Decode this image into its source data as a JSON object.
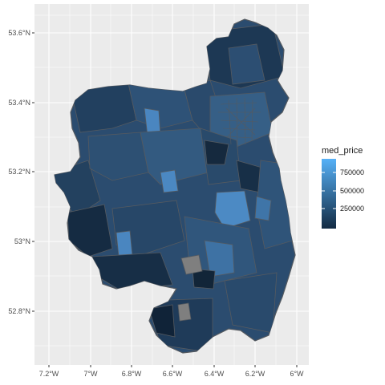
{
  "map": {
    "x_ticks": [
      "7.2°W",
      "7°W",
      "6.8°W",
      "6.6°W",
      "6.4°W",
      "6.2°W",
      "6°W"
    ],
    "y_ticks": [
      "53.6°N",
      "53.4°N",
      "53.2°N",
      "53°N",
      "52.8°N"
    ],
    "legend": {
      "title": "med_price",
      "labels": [
        "750000",
        "500000",
        "250000"
      ],
      "color_low": "#132B43",
      "color_high": "#56B1F7"
    },
    "colors": {
      "panel_bg": "#ebebeb",
      "grid": "#ffffff",
      "border": "#555a60",
      "na_fill": "#7f7f7f"
    }
  }
}
